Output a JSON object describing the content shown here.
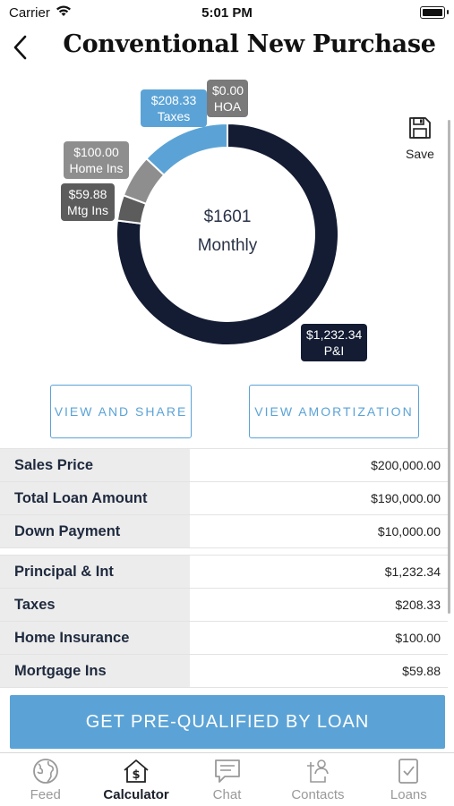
{
  "status_bar": {
    "carrier": "Carrier",
    "time": "5:01 PM"
  },
  "header": {
    "title": "Conventional New Purchase"
  },
  "chart_data": {
    "type": "pie",
    "donut": true,
    "center_amount": "$1601",
    "center_label": "Monthly",
    "slices": [
      {
        "label": "P&I",
        "value": 1232.34,
        "display": "$1,232.34",
        "color": "#131c33"
      },
      {
        "label": "Mtg Ins",
        "value": 59.88,
        "display": "$59.88",
        "color": "#5c5c5c"
      },
      {
        "label": "Home Ins",
        "value": 100.0,
        "display": "$100.00",
        "color": "#8e8e8e"
      },
      {
        "label": "Taxes",
        "value": 208.33,
        "display": "$208.33",
        "color": "#5ba3d6"
      },
      {
        "label": "HOA",
        "value": 0.0,
        "display": "$0.00",
        "color": "#7a7a7a"
      }
    ]
  },
  "save": {
    "label": "Save"
  },
  "buttons": {
    "view_share": "VIEW AND SHARE",
    "view_amortization": "VIEW AMORTIZATION"
  },
  "loan_table": [
    {
      "label": "Sales Price",
      "value": "$200,000.00"
    },
    {
      "label": "Total Loan Amount",
      "value": "$190,000.00"
    },
    {
      "label": "Down Payment",
      "value": "$10,000.00"
    }
  ],
  "payment_table": [
    {
      "label": "Principal & Int",
      "value": "$1,232.34"
    },
    {
      "label": "Taxes",
      "value": "$208.33"
    },
    {
      "label": "Home Insurance",
      "value": "$100.00"
    },
    {
      "label": "Mortgage Ins",
      "value": "$59.88"
    }
  ],
  "cta": {
    "label": "GET PRE-QUALIFIED BY LOAN"
  },
  "tabs": [
    {
      "label": "Feed",
      "icon": "globe-icon",
      "active": false
    },
    {
      "label": "Calculator",
      "icon": "calculator-house-icon",
      "active": true
    },
    {
      "label": "Chat",
      "icon": "chat-icon",
      "active": false
    },
    {
      "label": "Contacts",
      "icon": "contacts-icon",
      "active": false
    },
    {
      "label": "Loans",
      "icon": "loans-icon",
      "active": false
    }
  ]
}
